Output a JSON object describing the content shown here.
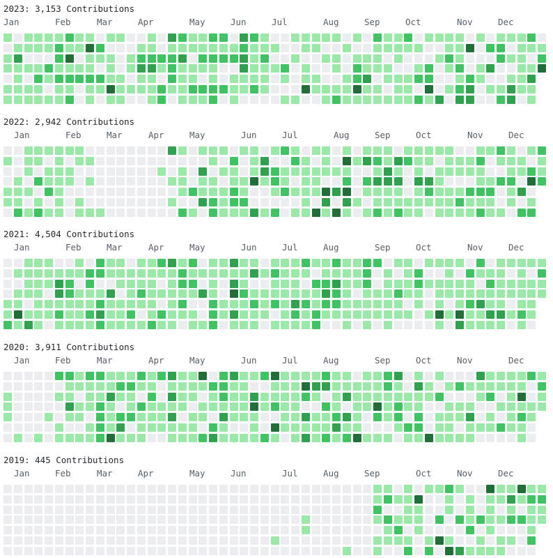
{
  "months": [
    "Jan",
    "Feb",
    "Mar",
    "Apr",
    "May",
    "Jun",
    "Jul",
    "Aug",
    "Sep",
    "Oct",
    "Nov",
    "Dec"
  ],
  "levels": {
    "l0": "#ebedf0",
    "l1": "#9be9a8",
    "l2": "#40c463",
    "l3": "#30a14e",
    "l4": "#216e39"
  },
  "years": [
    {
      "year": "2023",
      "title": "2023: 3,153 Contributions"
    },
    {
      "year": "2022",
      "title": "2022: 2,942 Contributions"
    },
    {
      "year": "2021",
      "title": "2021: 4,504 Contributions"
    },
    {
      "year": "2020",
      "title": "2020: 3,911 Contributions"
    },
    {
      "year": "2019",
      "title": "2019: 445 Contributions"
    }
  ]
}
